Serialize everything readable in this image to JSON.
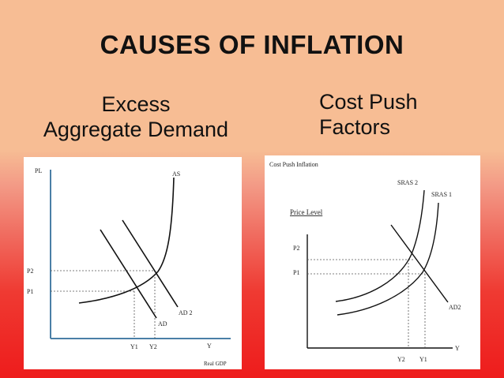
{
  "slide": {
    "title": "CAUSES OF INFLATION",
    "left_heading_line1": "Excess",
    "left_heading_line2": "Aggregate Demand",
    "right_heading_line1": "Cost Push",
    "right_heading_line2": "Factors"
  },
  "left_diagram": {
    "y_axis_label": "PL",
    "x_axis_label": "Y",
    "x_axis_caption": "Real GDP",
    "curve_as": "AS",
    "curve_ad": "AD",
    "curve_ad2": "AD 2",
    "p1": "P1",
    "p2": "P2",
    "y1": "Y1",
    "y2": "Y2",
    "colors": {
      "axes": "#4a7fa6",
      "curves": "#111111",
      "dashed": "#555555"
    }
  },
  "right_diagram": {
    "caption": "Cost Push Inflation",
    "y_axis_label": "Price Level",
    "x_axis_label": "Y",
    "curve_sras2": "SRAS 2",
    "curve_sras1": "SRAS 1",
    "curve_ad2": "AD2",
    "p1": "P1",
    "p2": "P2",
    "y1": "Y1",
    "y2": "Y2",
    "colors": {
      "axes": "#111111",
      "curves": "#111111",
      "dashed": "#555555"
    }
  }
}
